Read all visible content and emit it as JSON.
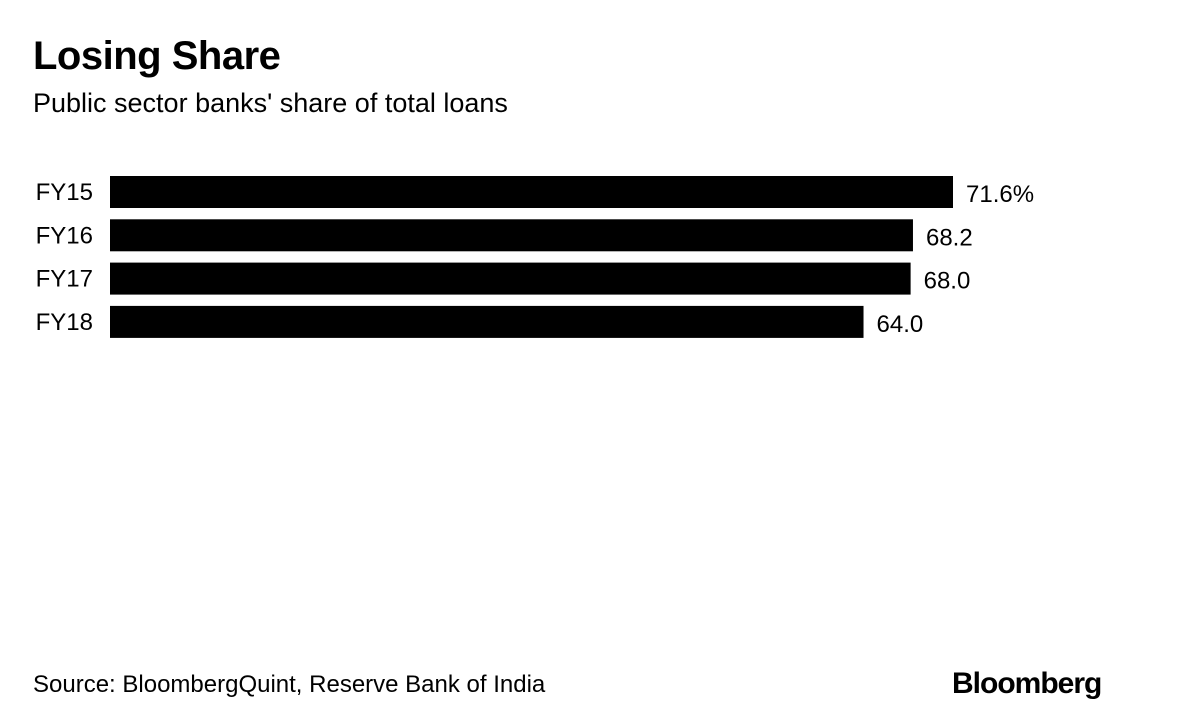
{
  "chart_data": {
    "type": "bar",
    "orientation": "horizontal",
    "title": "Losing Share",
    "subtitle": "Public sector banks' share of total loans",
    "categories": [
      "FY15",
      "FY16",
      "FY17",
      "FY18"
    ],
    "values": [
      71.6,
      68.2,
      68.0,
      64.0
    ],
    "value_labels": [
      "71.6%",
      "68.2",
      "68.0",
      "64.0"
    ],
    "bar_color": "#000000",
    "xlim": [
      0,
      71.6
    ],
    "grid": false
  },
  "footer": {
    "source": "Source: BloombergQuint, Reserve Bank of India",
    "logo": "Bloomberg"
  }
}
